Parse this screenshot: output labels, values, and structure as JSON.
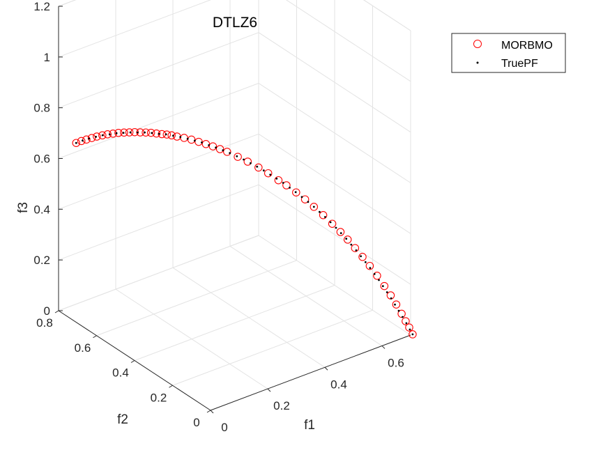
{
  "chart_data": {
    "type": "scatter",
    "projection": "3d",
    "title": "DTLZ6",
    "xlabel": "f1",
    "ylabel": "f2",
    "zlabel": "f3",
    "xlim": [
      0,
      0.7
    ],
    "ylim": [
      0,
      0.8
    ],
    "zlim": [
      0,
      1.2
    ],
    "xticks": [
      0,
      0.2,
      0.4,
      0.6
    ],
    "xtick_labels": [
      "0",
      "0.2",
      "0.4",
      "0.6"
    ],
    "yticks": [
      0,
      0.2,
      0.4,
      0.6,
      0.8
    ],
    "ytick_labels": [
      "0",
      "0.2",
      "0.4",
      "0.6",
      "0.8"
    ],
    "zticks": [
      0,
      0.2,
      0.4,
      0.6,
      0.8,
      1,
      1.2
    ],
    "ztick_labels": [
      "0",
      "0.2",
      "0.4",
      "0.6",
      "0.8",
      "1",
      "1.2"
    ],
    "grid": true,
    "legend_position": "top-right",
    "series": [
      {
        "name": "MORBMO",
        "marker": "circle-open",
        "color": "#ff0000",
        "points": [
          [
            0.0,
            0.707,
            0.707
          ],
          [
            0.018,
            0.707,
            0.707
          ],
          [
            0.035,
            0.706,
            0.706
          ],
          [
            0.053,
            0.705,
            0.705
          ],
          [
            0.07,
            0.704,
            0.704
          ],
          [
            0.088,
            0.702,
            0.702
          ],
          [
            0.105,
            0.7,
            0.7
          ],
          [
            0.122,
            0.697,
            0.697
          ],
          [
            0.139,
            0.694,
            0.694
          ],
          [
            0.156,
            0.69,
            0.69
          ],
          [
            0.172,
            0.686,
            0.686
          ],
          [
            0.188,
            0.682,
            0.682
          ],
          [
            0.204,
            0.677,
            0.677
          ],
          [
            0.22,
            0.672,
            0.672
          ],
          [
            0.235,
            0.667,
            0.667
          ],
          [
            0.25,
            0.661,
            0.661
          ],
          [
            0.265,
            0.655,
            0.655
          ],
          [
            0.279,
            0.65,
            0.65
          ],
          [
            0.292,
            0.644,
            0.644
          ],
          [
            0.306,
            0.637,
            0.637
          ],
          [
            0.325,
            0.628,
            0.628
          ],
          [
            0.344,
            0.618,
            0.618
          ],
          [
            0.362,
            0.607,
            0.607
          ],
          [
            0.38,
            0.596,
            0.596
          ],
          [
            0.397,
            0.585,
            0.585
          ],
          [
            0.414,
            0.573,
            0.573
          ],
          [
            0.431,
            0.561,
            0.561
          ],
          [
            0.455,
            0.541,
            0.541
          ],
          [
            0.477,
            0.522,
            0.522
          ],
          [
            0.5,
            0.5,
            0.5
          ],
          [
            0.52,
            0.479,
            0.479
          ],
          [
            0.54,
            0.455,
            0.455
          ],
          [
            0.556,
            0.437,
            0.437
          ],
          [
            0.574,
            0.413,
            0.413
          ],
          [
            0.59,
            0.39,
            0.39
          ],
          [
            0.605,
            0.366,
            0.366
          ],
          [
            0.62,
            0.34,
            0.34
          ],
          [
            0.634,
            0.313,
            0.313
          ],
          [
            0.646,
            0.288,
            0.288
          ],
          [
            0.656,
            0.265,
            0.265
          ],
          [
            0.665,
            0.24,
            0.24
          ],
          [
            0.674,
            0.214,
            0.214
          ],
          [
            0.682,
            0.188,
            0.188
          ],
          [
            0.689,
            0.16,
            0.16
          ],
          [
            0.695,
            0.131,
            0.131
          ],
          [
            0.7,
            0.105,
            0.105
          ],
          [
            0.703,
            0.08,
            0.08
          ],
          [
            0.705,
            0.055,
            0.055
          ],
          [
            0.706,
            0.035,
            0.035
          ],
          [
            0.707,
            0.018,
            0.018
          ],
          [
            0.707,
            0.0,
            0.0
          ]
        ]
      },
      {
        "name": "TruePF",
        "marker": "dot",
        "color": "#000000",
        "points": [
          [
            0.0,
            0.707,
            0.707
          ],
          [
            0.022,
            0.707,
            0.707
          ],
          [
            0.044,
            0.706,
            0.706
          ],
          [
            0.067,
            0.704,
            0.704
          ],
          [
            0.089,
            0.702,
            0.702
          ],
          [
            0.111,
            0.698,
            0.698
          ],
          [
            0.133,
            0.695,
            0.695
          ],
          [
            0.154,
            0.69,
            0.69
          ],
          [
            0.175,
            0.685,
            0.685
          ],
          [
            0.196,
            0.679,
            0.679
          ],
          [
            0.217,
            0.673,
            0.673
          ],
          [
            0.237,
            0.666,
            0.666
          ],
          [
            0.257,
            0.658,
            0.658
          ],
          [
            0.277,
            0.651,
            0.651
          ],
          [
            0.296,
            0.642,
            0.642
          ],
          [
            0.315,
            0.633,
            0.633
          ],
          [
            0.334,
            0.623,
            0.623
          ],
          [
            0.352,
            0.613,
            0.613
          ],
          [
            0.37,
            0.603,
            0.603
          ],
          [
            0.387,
            0.591,
            0.591
          ],
          [
            0.404,
            0.58,
            0.58
          ],
          [
            0.421,
            0.568,
            0.568
          ],
          [
            0.437,
            0.556,
            0.556
          ],
          [
            0.453,
            0.543,
            0.543
          ],
          [
            0.468,
            0.53,
            0.53
          ],
          [
            0.483,
            0.516,
            0.516
          ],
          [
            0.497,
            0.503,
            0.503
          ],
          [
            0.511,
            0.489,
            0.489
          ],
          [
            0.524,
            0.474,
            0.474
          ],
          [
            0.537,
            0.46,
            0.46
          ],
          [
            0.55,
            0.445,
            0.445
          ],
          [
            0.562,
            0.429,
            0.429
          ],
          [
            0.573,
            0.414,
            0.414
          ],
          [
            0.584,
            0.398,
            0.398
          ],
          [
            0.595,
            0.382,
            0.382
          ],
          [
            0.605,
            0.366,
            0.366
          ],
          [
            0.614,
            0.35,
            0.35
          ],
          [
            0.623,
            0.334,
            0.334
          ],
          [
            0.631,
            0.318,
            0.318
          ],
          [
            0.639,
            0.301,
            0.301
          ],
          [
            0.646,
            0.285,
            0.285
          ],
          [
            0.653,
            0.268,
            0.268
          ],
          [
            0.659,
            0.251,
            0.251
          ],
          [
            0.665,
            0.234,
            0.234
          ],
          [
            0.67,
            0.217,
            0.217
          ],
          [
            0.675,
            0.2,
            0.2
          ],
          [
            0.68,
            0.183,
            0.183
          ],
          [
            0.684,
            0.166,
            0.166
          ],
          [
            0.688,
            0.149,
            0.149
          ],
          [
            0.691,
            0.132,
            0.132
          ],
          [
            0.694,
            0.115,
            0.115
          ],
          [
            0.697,
            0.098,
            0.098
          ],
          [
            0.699,
            0.081,
            0.081
          ],
          [
            0.701,
            0.064,
            0.064
          ],
          [
            0.703,
            0.047,
            0.047
          ],
          [
            0.705,
            0.03,
            0.03
          ],
          [
            0.706,
            0.013,
            0.013
          ],
          [
            0.707,
            0.0,
            0.0
          ]
        ]
      }
    ]
  }
}
